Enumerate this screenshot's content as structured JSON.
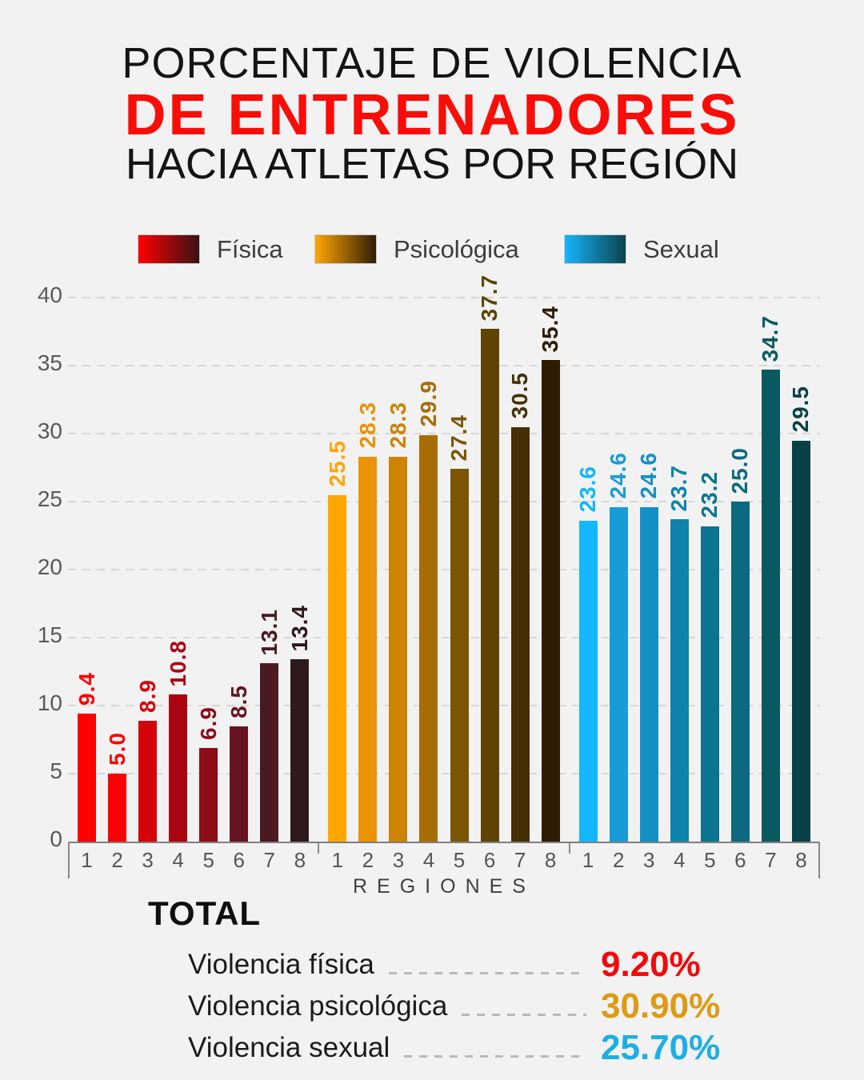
{
  "title": {
    "line1": "PORCENTAJE DE VIOLENCIA",
    "line2": "DE ENTRENADORES",
    "line3": "HACIA ATLETAS POR REGIÓN",
    "accent_color": "#f90d09"
  },
  "legend": [
    {
      "label": "Física",
      "gradient_start": "#ff0000",
      "gradient_end": "#3a1214"
    },
    {
      "label": "Psicológica",
      "gradient_start": "#ffa602",
      "gradient_end": "#2f1d06"
    },
    {
      "label": "Sexual",
      "gradient_start": "#16b5fb",
      "gradient_end": "#0b444b"
    }
  ],
  "chart_data": {
    "type": "bar",
    "title": "Porcentaje de violencia de entrenadores hacia atletas por región",
    "xlabel": "REGIONES",
    "ylabel": "",
    "ylim": [
      0,
      40
    ],
    "yticks": [
      0,
      5,
      10,
      15,
      20,
      25,
      30,
      35,
      40
    ],
    "grid": "horizontal-dashed",
    "legend_position": "top",
    "categories": [
      "1",
      "2",
      "3",
      "4",
      "5",
      "6",
      "7",
      "8"
    ],
    "series": [
      {
        "name": "Física",
        "values": [
          9.4,
          5.0,
          8.9,
          10.8,
          6.9,
          8.5,
          13.1,
          13.4
        ],
        "labels": [
          "9.4",
          "5.0",
          "8.9",
          "10.8",
          "6.9",
          "8.5",
          "13.1",
          "13.4"
        ],
        "bar_colors": [
          "#fe0101",
          "#fb0103",
          "#d5040a",
          "#ab0511",
          "#8c0c17",
          "#671420",
          "#4a1a20",
          "#2e1a1c"
        ]
      },
      {
        "name": "Psicológica",
        "values": [
          25.5,
          28.3,
          28.3,
          29.9,
          27.4,
          37.7,
          30.5,
          35.4
        ],
        "labels": [
          "25.5",
          "28.3",
          "28.3",
          "29.9",
          "27.4",
          "37.7",
          "30.5",
          "35.4"
        ],
        "bar_colors": [
          "#ffa602",
          "#eb9206",
          "#cd8304",
          "#a76d04",
          "#7b5502",
          "#5e4304",
          "#462f05",
          "#2f1c04"
        ]
      },
      {
        "name": "Sexual",
        "values": [
          23.6,
          24.6,
          24.6,
          23.7,
          23.2,
          25.0,
          34.7,
          29.5
        ],
        "labels": [
          "23.6",
          "24.6",
          "24.6",
          "23.7",
          "23.2",
          "25.0",
          "34.7",
          "29.5"
        ],
        "bar_colors": [
          "#12b7fd",
          "#189cd8",
          "#1390c4",
          "#0e84ad",
          "#0b7490",
          "#0c697f",
          "#0a5961",
          "#094148"
        ]
      }
    ]
  },
  "totals": {
    "heading": "TOTAL",
    "rows": [
      {
        "label": "Violencia física",
        "value": "9.20%",
        "color": "#f20a0a"
      },
      {
        "label": "Violencia psicológica",
        "value": "30.90%",
        "color": "#df9a14"
      },
      {
        "label": "Violencia sexual",
        "value": "25.70%",
        "color": "#1caee4"
      }
    ]
  }
}
